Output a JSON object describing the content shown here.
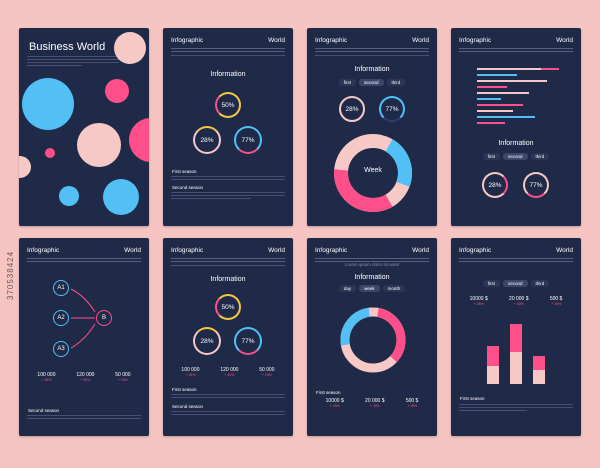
{
  "cover": {
    "title": "Business World"
  },
  "header": {
    "left": "Infographic",
    "right": "World"
  },
  "info_title": "Information",
  "tabs_a": [
    "first",
    "second",
    "third"
  ],
  "tabs_b": [
    "day",
    "week",
    "month"
  ],
  "circles": {
    "p1": "50%",
    "p2": "28%",
    "p3": "77%"
  },
  "donut": {
    "center": "Week"
  },
  "flow": {
    "a1": "A1",
    "a2": "A2",
    "a3": "A3",
    "b": "B"
  },
  "stats_values": [
    "10000 $",
    "20 000 $",
    "500 $"
  ],
  "stats_values2": [
    "100 000",
    "120 000",
    "50 000"
  ],
  "sections": {
    "first": "First season",
    "second": "Second season"
  },
  "lorem": "Lorem ipsum dolor sit amet",
  "watermark": "370538424",
  "colors": {
    "bg": "#f6c5c2",
    "card": "#1f2a48",
    "blue": "#53c0f5",
    "pink": "#ff4f8b",
    "light": "#f7c9c6",
    "yellow": "#f5c646"
  }
}
